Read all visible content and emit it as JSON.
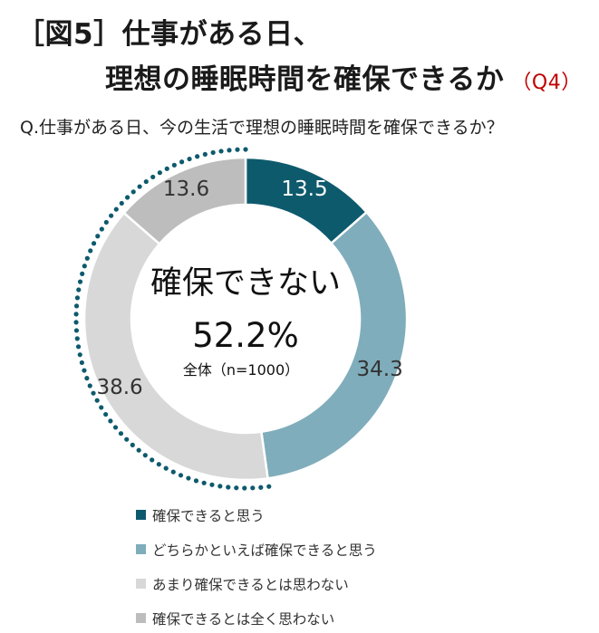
{
  "title": {
    "line1": "［図5］仕事がある日、",
    "line2": "理想の睡眠時間を確保できるか",
    "tag": "（Q4）"
  },
  "question": "Q.仕事がある日、今の生活で理想の睡眠時間を確保できるか？",
  "center": {
    "label": "確保できない",
    "value": "52.2%",
    "base": "全体（n=1000）"
  },
  "chart_data": {
    "type": "pie",
    "donut": true,
    "categories": [
      "確保できると思う",
      "どちらかといえば確保できると思う",
      "あまり確保できるとは思わない",
      "確保できるとは全く思わない"
    ],
    "values": [
      13.5,
      34.3,
      38.6,
      13.6
    ],
    "labels": [
      "13.5",
      "34.3",
      "38.6",
      "13.6"
    ],
    "colors": [
      "#0e5a6d",
      "#7fadbb",
      "#d8d8d8",
      "#bdbdbd"
    ],
    "highlight_group": {
      "categories": [
        "あまり確保できるとは思わない",
        "確保できるとは全く思わない"
      ],
      "total": 52.2,
      "style": "dotted-arc",
      "color": "#0e5a6d"
    },
    "legend_position": "bottom"
  }
}
